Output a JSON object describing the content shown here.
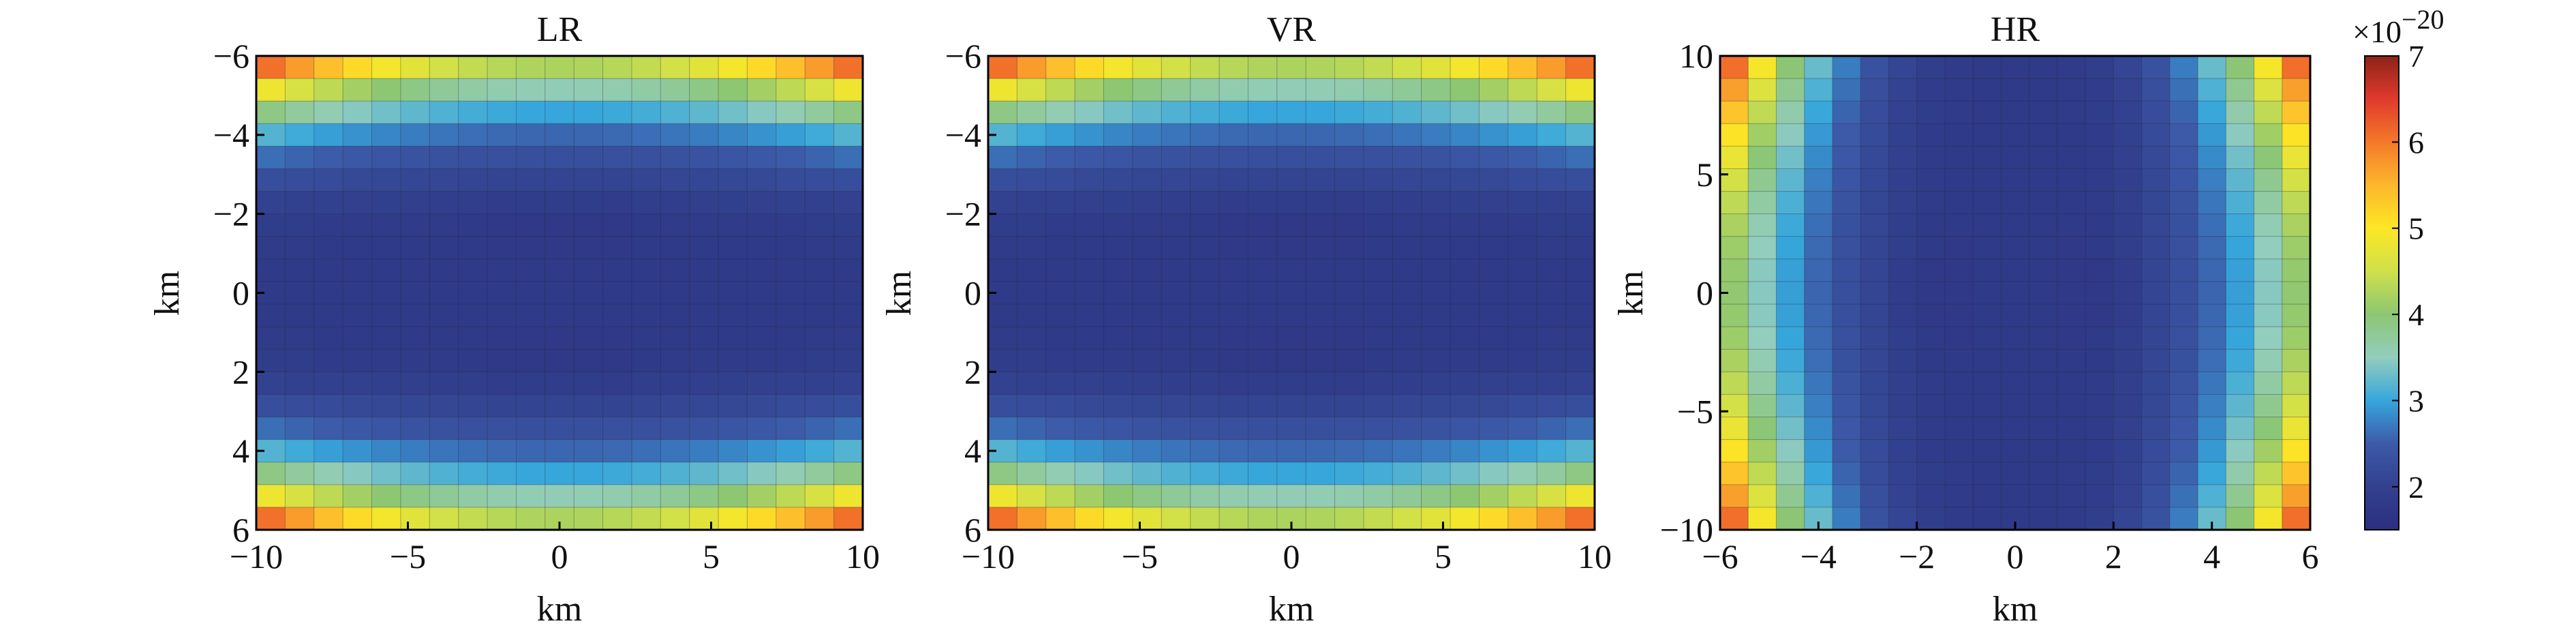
{
  "chart_data": [
    {
      "type": "heatmap",
      "title": "LR",
      "xlabel": "km",
      "ylabel": "km",
      "xlim": [
        -10,
        10
      ],
      "ylim": [
        -6,
        6
      ],
      "y_reversed": true,
      "xticks": [
        -10,
        -5,
        0,
        5,
        10
      ],
      "xtick_labels": [
        "−10",
        "−5",
        "0",
        "5",
        "10"
      ],
      "yticks": [
        -6,
        -4,
        -2,
        0,
        2,
        4,
        6
      ],
      "ytick_labels": [
        "−6",
        "−4",
        "−2",
        "0",
        "2",
        "4",
        "6"
      ],
      "grid": {
        "nx": 21,
        "ny": 21
      },
      "pattern": "edges-high-along-y",
      "range": [
        1.8,
        7.0
      ],
      "units": "×10^-20"
    },
    {
      "type": "heatmap",
      "title": "VR",
      "xlabel": "km",
      "ylabel": "km",
      "xlim": [
        -10,
        10
      ],
      "ylim": [
        -6,
        6
      ],
      "y_reversed": true,
      "xticks": [
        -10,
        -5,
        0,
        5,
        10
      ],
      "xtick_labels": [
        "−10",
        "−5",
        "0",
        "5",
        "10"
      ],
      "yticks": [
        -6,
        -4,
        -2,
        0,
        2,
        4,
        6
      ],
      "ytick_labels": [
        "−6",
        "−4",
        "−2",
        "0",
        "2",
        "4",
        "6"
      ],
      "grid": {
        "nx": 21,
        "ny": 21
      },
      "pattern": "edges-high-along-y",
      "range": [
        1.8,
        7.0
      ],
      "units": "×10^-20"
    },
    {
      "type": "heatmap",
      "title": "HR",
      "xlabel": "km",
      "ylabel": "km",
      "xlim": [
        -6,
        6
      ],
      "ylim": [
        -10,
        10
      ],
      "y_reversed": false,
      "xticks": [
        -6,
        -4,
        -2,
        0,
        2,
        4,
        6
      ],
      "xtick_labels": [
        "−6",
        "−4",
        "−2",
        "0",
        "2",
        "4",
        "6"
      ],
      "yticks": [
        10,
        5,
        0,
        -5,
        -10
      ],
      "ytick_labels": [
        "10",
        "5",
        "0",
        "−5",
        "−10"
      ],
      "grid": {
        "nx": 21,
        "ny": 21
      },
      "pattern": "edges-high-along-x",
      "range": [
        1.8,
        7.0
      ],
      "units": "×10^-20"
    }
  ],
  "colorbar": {
    "min": 1.5,
    "max": 7.0,
    "ticks": [
      2,
      3,
      4,
      5,
      6,
      7
    ],
    "exponent_base": "×10",
    "exponent_power": "−20",
    "colors": [
      "#2b2f7e",
      "#32418f",
      "#3c5aa8",
      "#36a6db",
      "#93cdbd",
      "#8cc673",
      "#cfe04a",
      "#fde725",
      "#fdb72d",
      "#f4792a",
      "#e03a2d",
      "#8b2318"
    ]
  }
}
